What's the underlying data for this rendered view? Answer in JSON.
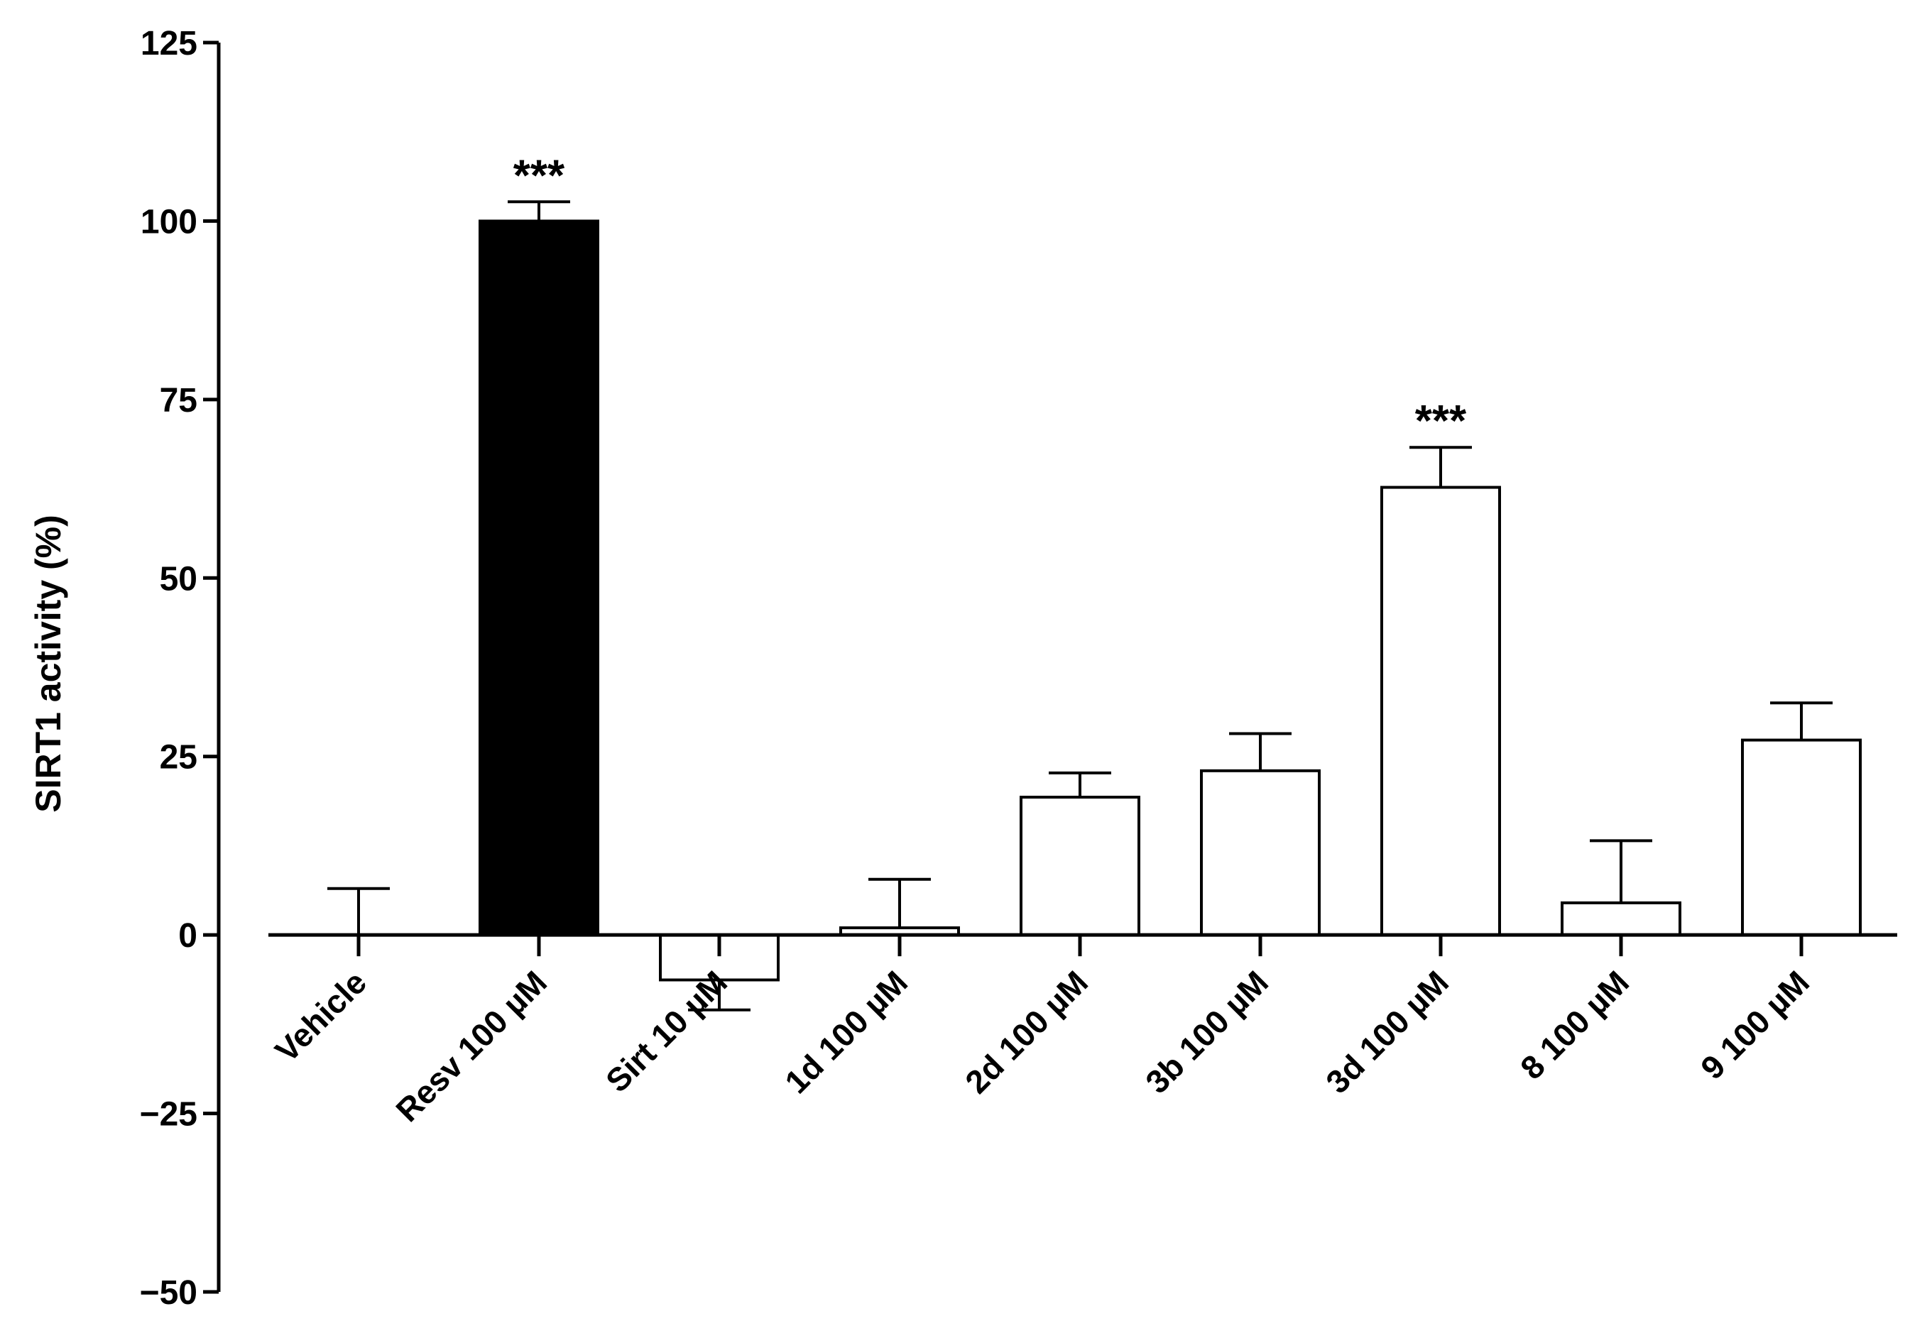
{
  "chart_data": {
    "type": "bar",
    "title": "",
    "xlabel": "",
    "ylabel": "SIRT1 activity (%)",
    "ylim": [
      -50,
      125
    ],
    "yticks": [
      125,
      100,
      75,
      50,
      25,
      0,
      -25,
      -50
    ],
    "ytick_labels": [
      "125",
      "100",
      "75",
      "50",
      "25",
      "0",
      "−25",
      "−50"
    ],
    "grid": false,
    "legend": "none",
    "categories": [
      "Vehicle",
      "Resv 100 µM",
      "Sirt 10 µM",
      "1d 100 µM",
      "2d 100 µM",
      "3b 100 µM",
      "3d 100 µM",
      "8 100 µM",
      "9 100 µM"
    ],
    "series": [
      {
        "values": [
          0,
          100,
          -6.3,
          1,
          19.3,
          23,
          62.7,
          4.5,
          27.3
        ],
        "error": [
          6.5,
          2.7,
          4.2,
          6.8,
          3.4,
          5.2,
          5.6,
          8.7,
          5.2
        ],
        "fill_colors": [
          "#ffffff",
          "#000000",
          "#ffffff",
          "#ffffff",
          "#ffffff",
          "#ffffff",
          "#ffffff",
          "#ffffff",
          "#ffffff"
        ]
      }
    ],
    "annotations": [
      {
        "category": "Resv 100 µM",
        "text": "***"
      },
      {
        "category": "3d 100 µM",
        "text": "***"
      }
    ]
  }
}
